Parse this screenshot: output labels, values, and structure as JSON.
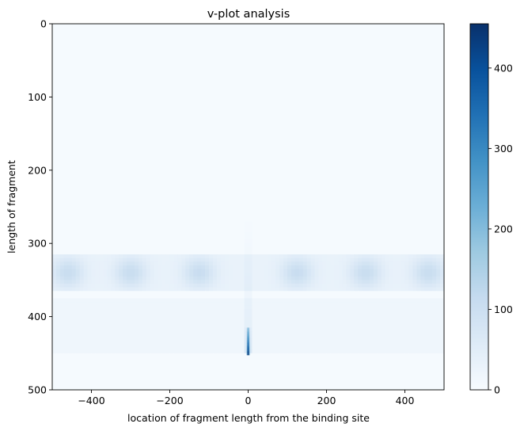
{
  "chart_data": {
    "type": "heatmap",
    "title": "v-plot analysis",
    "xlabel": "location of fragment length from the binding site",
    "ylabel": "length of fragment",
    "xlim": [
      -500,
      500
    ],
    "ylim": [
      500,
      0
    ],
    "y_inverted": true,
    "x_ticks": [
      -400,
      -200,
      0,
      200,
      400
    ],
    "x_tick_labels": [
      "−400",
      "−200",
      "0",
      "200",
      "400"
    ],
    "y_ticks": [
      0,
      100,
      200,
      300,
      400,
      500
    ],
    "y_tick_labels": [
      "0",
      "100",
      "200",
      "300",
      "400",
      "500"
    ],
    "colormap": "Blues",
    "colorbar": {
      "range": [
        0,
        455
      ],
      "ticks": [
        0,
        100,
        200,
        300,
        400
      ],
      "tick_labels": [
        "0",
        "100",
        "200",
        "300",
        "400"
      ]
    },
    "features": {
      "background_level": 4,
      "band_y_range": [
        315,
        365
      ],
      "band_level": 28,
      "band_blob_x_centers": [
        -460,
        -300,
        -125,
        125,
        300,
        460
      ],
      "band_blob_level": 75,
      "lower_region_y_range": [
        375,
        450
      ],
      "lower_region_level": 14,
      "center_line_x": 0,
      "center_peak_y_range": [
        415,
        452
      ],
      "center_peak_max": 455
    },
    "colors": {
      "cmap_low": "#f7fbff",
      "cmap_high": "#08306b",
      "axis": "#000000"
    }
  }
}
